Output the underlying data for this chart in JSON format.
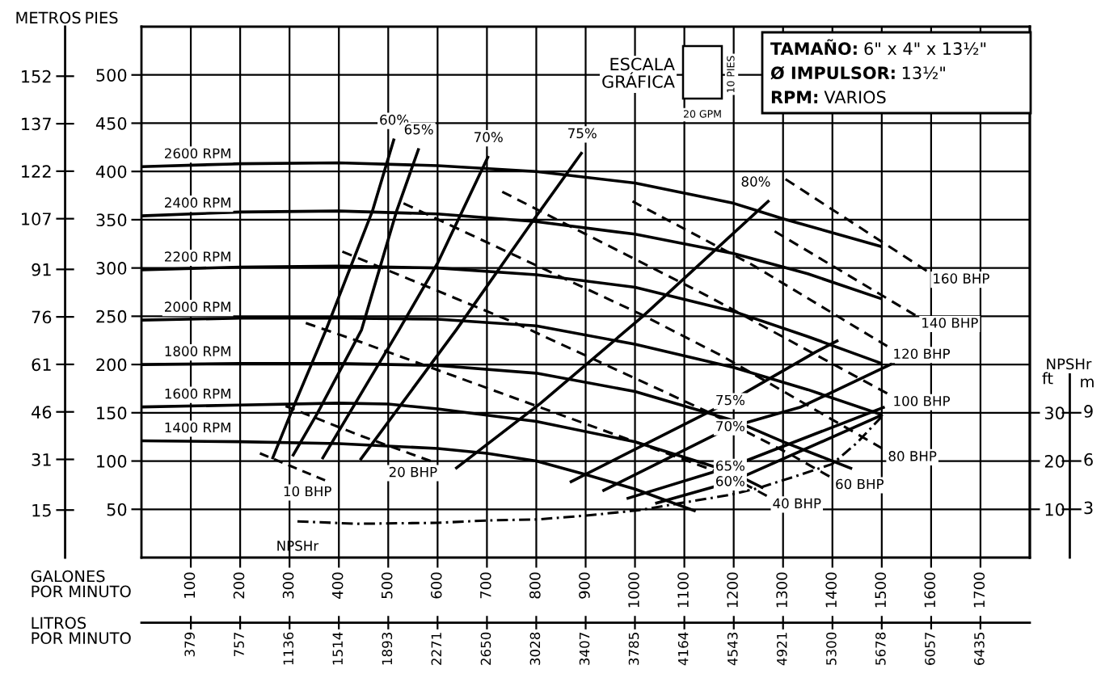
{
  "chart_data": {
    "type": "line",
    "xlabel": "GALONES\nPOR MINUTO",
    "x2label": "LITROS\nPOR MINUTO",
    "ylabel": "PIES",
    "y3label": "METROS",
    "y2label": "ft",
    "xlim": [
      0,
      1800
    ],
    "xticks": [
      100,
      200,
      300,
      400,
      500,
      600,
      700,
      800,
      900,
      1000,
      1100,
      1200,
      1300,
      1400,
      1500,
      1600,
      1700
    ],
    "x2lim": [
      0,
      6813.72
    ],
    "x2ticks": [
      379,
      757,
      1136,
      1514,
      1893,
      2271,
      2650,
      3028,
      3407,
      3785,
      4164,
      4543,
      4921,
      5300,
      5678,
      6057,
      6435
    ],
    "ylim": [
      0,
      550
    ],
    "yticks": [
      50,
      100,
      150,
      200,
      250,
      300,
      350,
      400,
      450,
      500
    ],
    "y3lim": [
      0,
      167.64
    ],
    "y3ticks": [
      15,
      31,
      46,
      61,
      76,
      91,
      107,
      122,
      137,
      152
    ],
    "y2lim": [
      0,
      110
    ],
    "y2ticks": [
      10,
      20,
      30
    ],
    "grid": true,
    "annotations": [
      "ESCALA\nGRÁFICA",
      "10 PIES",
      "20 GPM",
      "TAMAÑO: 6\" x 4\" x 13½\"",
      "Ø IMPULSOR: 13½\"",
      "RPM: VARIOS",
      "NPSHr",
      "m",
      "3",
      "6",
      "9"
    ],
    "series": [
      {
        "name": "2600 RPM",
        "color": "#000000",
        "line_style": "solid",
        "x": [
          0,
          200,
          400,
          600,
          800,
          1000,
          1200,
          1300,
          1500
        ],
        "values": [
          405,
          408,
          409,
          406,
          400,
          388,
          367,
          351,
          322
        ]
      },
      {
        "name": "2400 RPM",
        "color": "#000000",
        "line_style": "solid",
        "x": [
          0,
          200,
          400,
          600,
          800,
          1000,
          1200,
          1350,
          1500
        ],
        "values": [
          354,
          358,
          359,
          356,
          348,
          335,
          315,
          294,
          268
        ]
      },
      {
        "name": "2200 RPM",
        "color": "#000000",
        "line_style": "solid",
        "x": [
          0,
          200,
          400,
          600,
          800,
          1000,
          1200,
          1350,
          1500
        ],
        "values": [
          298,
          301,
          302,
          300,
          293,
          280,
          255,
          229,
          201
        ]
      },
      {
        "name": "2000 RPM",
        "color": "#000000",
        "line_style": "solid",
        "x": [
          0,
          200,
          400,
          600,
          800,
          1000,
          1200,
          1350,
          1500
        ],
        "values": [
          246,
          248,
          248,
          247,
          240,
          221,
          197,
          174,
          148
        ]
      },
      {
        "name": "1800 RPM",
        "color": "#000000",
        "line_style": "solid",
        "x": [
          0,
          200,
          400,
          600,
          800,
          1000,
          1200,
          1300,
          1440
        ],
        "values": [
          200,
          201,
          201,
          199,
          191,
          172,
          142,
          120,
          92
        ]
      },
      {
        "name": "1600 RPM",
        "color": "#000000",
        "line_style": "solid",
        "x": [
          0,
          200,
          400,
          500,
          600,
          800,
          1000,
          1193,
          1260
        ],
        "values": [
          156,
          158,
          160,
          159,
          154,
          141,
          120,
          89,
          72
        ]
      },
      {
        "name": "1400 RPM",
        "color": "#000000",
        "line_style": "solid",
        "x": [
          0,
          200,
          400,
          600,
          700,
          800,
          900,
          1000,
          1123
        ],
        "values": [
          121,
          120,
          118,
          113,
          108,
          100,
          86,
          71,
          48
        ]
      },
      {
        "name": "60%",
        "color": "#000000",
        "line_style": "solid",
        "x": [
          265,
          303,
          374,
          468,
          512,
          null,
          1041,
          1193,
          1502
        ],
        "values": [
          102,
          150,
          236,
          359,
          434,
          null,
          56,
          78,
          148
        ]
      },
      {
        "name": "65%",
        "color": "#000000",
        "line_style": "solid",
        "x": [
          306,
          357,
          446,
          517,
          562,
          null,
          983,
          1193,
          1506
        ],
        "values": [
          105,
          150,
          236,
          359,
          424,
          null,
          61,
          94,
          156
        ]
      },
      {
        "name": "70%",
        "color": "#000000",
        "line_style": "solid",
        "x": [
          366,
          522,
          600,
          703,
          null,
          934,
          1193,
          1336,
          1526
        ],
        "values": [
          102,
          236,
          305,
          416,
          null,
          69,
          135,
          156,
          202
        ]
      },
      {
        "name": "75%",
        "color": "#000000",
        "line_style": "solid",
        "x": [
          443,
          638,
          792,
          893,
          null,
          868,
          1193,
          1278,
          1366,
          1412
        ],
        "values": [
          101,
          236,
          348,
          420,
          null,
          78,
          162,
          187,
          213,
          225
        ]
      },
      {
        "name": "80%",
        "color": "#000000",
        "line_style": "solid",
        "x": [
          636,
          809,
          1016,
          1272
        ],
        "values": [
          92,
          160,
          250,
          370
        ]
      },
      {
        "name": "10 BHP",
        "color": "#000000",
        "line_style": "dashed",
        "x": [
          240,
          372
        ],
        "values": [
          108,
          80
        ]
      },
      {
        "name": "20 BHP",
        "color": "#000000",
        "line_style": "dashed",
        "x": [
          292,
          440,
          586
        ],
        "values": [
          157,
          127,
          100
        ]
      },
      {
        "name": "40 BHP",
        "color": "#000000",
        "line_style": "dashed",
        "x": [
          333,
          435,
          1193,
          1267
        ],
        "values": [
          243,
          225,
          84,
          64
        ]
      },
      {
        "name": "60 BHP",
        "color": "#000000",
        "line_style": "dashed",
        "x": [
          407,
          753,
          1143,
          1311,
          1394
        ],
        "values": [
          317,
          244,
          152,
          108,
          84
        ]
      },
      {
        "name": "80 BHP",
        "color": "#000000",
        "line_style": "dashed",
        "x": [
          531,
          1012,
          1176,
          1501
        ],
        "values": [
          367,
          252,
          209,
          113
        ]
      },
      {
        "name": "100 BHP",
        "color": "#000000",
        "line_style": "dashed",
        "x": [
          731,
          1147,
          1511
        ],
        "values": [
          379,
          271,
          170
        ]
      },
      {
        "name": "120 BHP",
        "color": "#000000",
        "line_style": "dashed",
        "x": [
          995,
          1242,
          1511
        ],
        "values": [
          369,
          302,
          219
        ]
      },
      {
        "name": "140 BHP",
        "color": "#000000",
        "line_style": "dashed",
        "x": [
          1283,
          1568
        ],
        "values": [
          338,
          251
        ]
      },
      {
        "name": "160 BHP",
        "color": "#000000",
        "line_style": "dashed",
        "x": [
          1305,
          1591
        ],
        "values": [
          392,
          297
        ]
      },
      {
        "name": "NPSHr",
        "color": "#000000",
        "line_style": "dashdot",
        "axis": "y2",
        "x": [
          316,
          435,
          600,
          703,
          802,
          901,
          1007,
          1105,
          1193,
          1250,
          1336,
          1400,
          1450,
          1500
        ],
        "values": [
          7.5,
          7.0,
          7.2,
          7.7,
          7.9,
          8.7,
          9.8,
          11.5,
          13.0,
          14.4,
          17.2,
          19.4,
          23.8,
          29.2
        ]
      }
    ]
  }
}
